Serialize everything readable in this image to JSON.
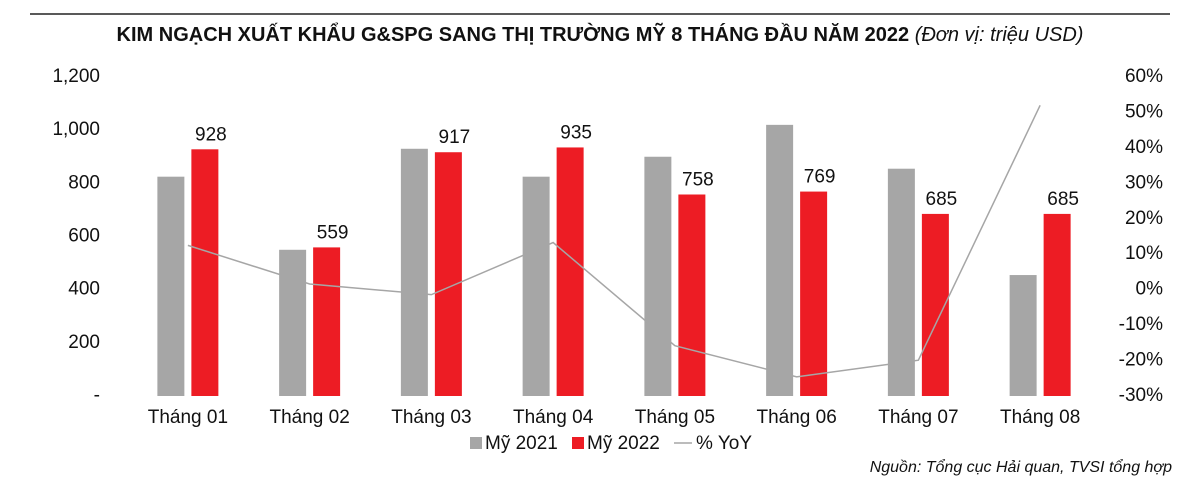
{
  "chart_data": {
    "type": "bar",
    "title": "KIM NGẠCH XUẤT KHẨU G&SPG SANG THỊ TRƯỜNG MỸ 8 THÁNG ĐẦU NĂM 2022",
    "unit": "(Đơn vị: triệu USD)",
    "source": "Nguồn: Tổng cục Hải quan, TVSI tổng hợp",
    "categories": [
      "Tháng 01",
      "Tháng 02",
      "Tháng 03",
      "Tháng 04",
      "Tháng 05",
      "Tháng 06",
      "Tháng 07",
      "Tháng 08"
    ],
    "series": [
      {
        "name": "Mỹ 2021",
        "type": "bar",
        "color": "#a6a6a6",
        "values": [
          825,
          550,
          930,
          825,
          900,
          1020,
          855,
          455
        ]
      },
      {
        "name": "Mỹ 2022",
        "type": "bar",
        "color": "#ed1c24",
        "data_labels": true,
        "values": [
          928,
          559,
          917,
          935,
          758,
          769,
          685,
          685
        ]
      },
      {
        "name": "% YoY",
        "type": "line",
        "axis": "y2",
        "color": "#a6a6a6",
        "values": [
          12.5,
          1.6,
          -1.4,
          13.3,
          -15.8,
          -24.6,
          -19.9,
          52
        ]
      }
    ],
    "ylim": [
      0,
      1200
    ],
    "yticks": [
      {
        "value": 0,
        "label": "-"
      },
      200,
      400,
      600,
      800,
      {
        "value": 1000,
        "label": "1,000"
      },
      {
        "value": 1200,
        "label": "1,200"
      }
    ],
    "y2lim": [
      -30,
      60
    ],
    "y2ticks": [
      {
        "value": -30,
        "label": "-30%"
      },
      {
        "value": -20,
        "label": "-20%"
      },
      {
        "value": -10,
        "label": "-10%"
      },
      {
        "value": 0,
        "label": "0%"
      },
      {
        "value": 10,
        "label": "10%"
      },
      {
        "value": 20,
        "label": "20%"
      },
      {
        "value": 30,
        "label": "30%"
      },
      {
        "value": 40,
        "label": "40%"
      },
      {
        "value": 50,
        "label": "50%"
      },
      {
        "value": 60,
        "label": "60%"
      }
    ],
    "legend": "bottom"
  }
}
